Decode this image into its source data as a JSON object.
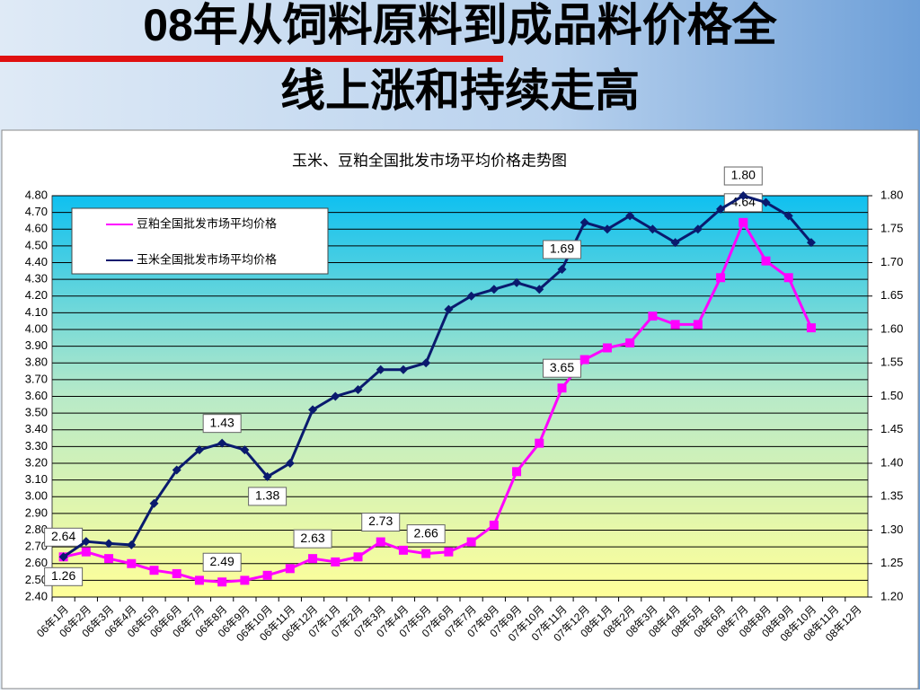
{
  "header": {
    "title_lines": [
      "08年从饲料原料到成品料价格全",
      "线上涨和持续走高"
    ]
  },
  "chart_data": {
    "type": "line",
    "title": "玉米、豆粕全国批发市场平均价格走势图",
    "categories": [
      "06年1月",
      "06年2月",
      "06年3月",
      "06年4月",
      "06年5月",
      "06年6月",
      "06年7月",
      "06年8月",
      "06年9月",
      "06年10月",
      "06年11月",
      "06年12月",
      "07年1月",
      "07年2月",
      "07年3月",
      "07年4月",
      "07年5月",
      "07年6月",
      "07年7月",
      "07年8月",
      "07年9月",
      "07年10月",
      "07年11月",
      "07年12月",
      "08年1月",
      "08年2月",
      "08年3月",
      "08年4月",
      "08年5月",
      "08年6月",
      "08年7月",
      "08年8月",
      "08年9月",
      "08年10月",
      "08年11月",
      "08年12月"
    ],
    "series": [
      {
        "name": "豆粕全国批发市场平均价格",
        "color": "#ff00ff",
        "marker": "square",
        "values": [
          2.64,
          2.67,
          2.63,
          2.6,
          2.56,
          2.54,
          2.5,
          2.49,
          2.5,
          2.53,
          2.57,
          2.63,
          2.61,
          2.64,
          2.73,
          2.68,
          2.66,
          2.67,
          2.73,
          2.83,
          3.15,
          3.32,
          3.65,
          3.82,
          3.89,
          3.92,
          4.08,
          4.03,
          4.03,
          4.31,
          4.64,
          4.41,
          4.31,
          4.01,
          null,
          null
        ],
        "value_labels": [
          "2.64",
          null,
          null,
          null,
          null,
          null,
          null,
          "2.49",
          null,
          null,
          null,
          "2.63",
          null,
          null,
          "2.73",
          null,
          "2.66",
          null,
          null,
          null,
          null,
          null,
          "3.65",
          null,
          null,
          null,
          null,
          null,
          null,
          null,
          "4.64",
          null,
          null,
          null,
          null,
          null
        ]
      },
      {
        "name": "玉米全国批发市场平均价格",
        "color": "#0a1a6e",
        "marker": "diamond",
        "axis": "y2",
        "values": [
          1.26,
          1.283,
          1.28,
          1.278,
          1.34,
          1.39,
          1.42,
          1.43,
          1.42,
          1.38,
          1.4,
          1.48,
          1.5,
          1.51,
          1.54,
          1.54,
          1.55,
          1.63,
          1.65,
          1.66,
          1.67,
          1.66,
          1.69,
          1.76,
          1.75,
          1.77,
          1.75,
          1.73,
          1.75,
          1.78,
          1.8,
          1.79,
          1.77,
          1.73,
          null,
          null
        ],
        "value_labels": [
          "1.26",
          null,
          null,
          null,
          null,
          null,
          null,
          "1.43",
          null,
          "1.38",
          null,
          null,
          null,
          null,
          null,
          null,
          null,
          null,
          null,
          null,
          null,
          null,
          "1.69",
          null,
          null,
          null,
          null,
          null,
          null,
          null,
          "1.80",
          null,
          null,
          null,
          null,
          null
        ]
      }
    ],
    "ylim": [
      2.4,
      4.8
    ],
    "yticks": [
      {
        "value": 2.4,
        "label": "2.40"
      },
      {
        "value": 2.5,
        "label": "2.50"
      },
      {
        "value": 2.6,
        "label": "2.60"
      },
      {
        "value": 2.7,
        "label": "2.70"
      },
      {
        "value": 2.8,
        "label": "2.80"
      },
      {
        "value": 2.9,
        "label": "2.90"
      },
      {
        "value": 3.0,
        "label": "3.00"
      },
      {
        "value": 3.1,
        "label": "3.10"
      },
      {
        "value": 3.2,
        "label": "3.20"
      },
      {
        "value": 3.3,
        "label": "3.30"
      },
      {
        "value": 3.4,
        "label": "3.40"
      },
      {
        "value": 3.5,
        "label": "3.50"
      },
      {
        "value": 3.6,
        "label": "3.60"
      },
      {
        "value": 3.7,
        "label": "3.70"
      },
      {
        "value": 3.8,
        "label": "3.80"
      },
      {
        "value": 3.9,
        "label": "3.90"
      },
      {
        "value": 4.0,
        "label": "4.00"
      },
      {
        "value": 4.1,
        "label": "4.10"
      },
      {
        "value": 4.2,
        "label": "4.20"
      },
      {
        "value": 4.3,
        "label": "4.30"
      },
      {
        "value": 4.4,
        "label": "4.40"
      },
      {
        "value": 4.5,
        "label": "4.50"
      },
      {
        "value": 4.6,
        "label": "4.60"
      },
      {
        "value": 4.7,
        "label": "4.70"
      },
      {
        "value": 4.8,
        "label": "4.80"
      }
    ],
    "y2lim": [
      1.2,
      1.8
    ],
    "y2ticks": [
      {
        "value": 1.2,
        "label": "1.20"
      },
      1.25,
      {
        "value": 1.3,
        "label": "1.30"
      },
      1.35,
      {
        "value": 1.4,
        "label": "1.40"
      },
      1.45,
      {
        "value": 1.5,
        "label": "1.50"
      },
      1.55,
      {
        "value": 1.6,
        "label": "1.60"
      },
      1.65,
      {
        "value": 1.7,
        "label": "1.70"
      },
      1.75,
      {
        "value": 1.8,
        "label": "1.80"
      }
    ],
    "grid": true,
    "legend": "upper left"
  }
}
